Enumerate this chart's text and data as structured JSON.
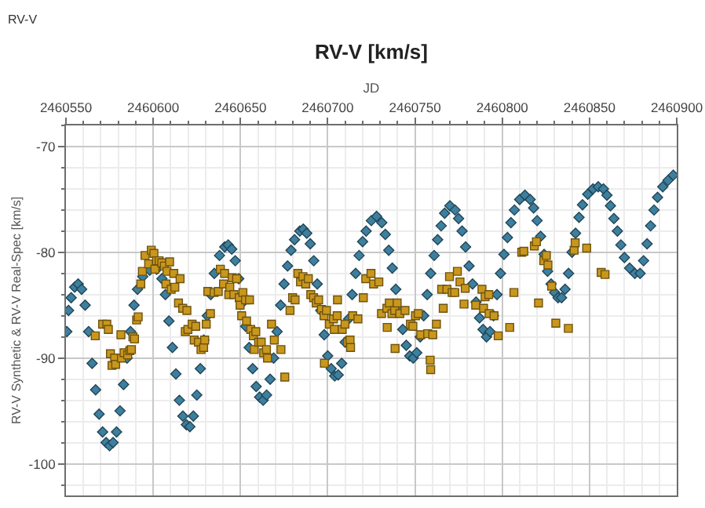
{
  "chart_data": {
    "type": "scatter",
    "title": "RV-V [km/s]",
    "xlabel": "JD",
    "ylabel": "RV-V Synthetic & RV-V Real-Spec [km/s]",
    "annotations": [
      "RV-V"
    ],
    "xlim": [
      2460550,
      2460900
    ],
    "ylim": [
      -103,
      -68
    ],
    "xticks": [
      2460550,
      {
        "value": 2460560,
        "label": null
      },
      {
        "value": 2460570,
        "label": null
      },
      {
        "value": 2460580,
        "label": null
      },
      {
        "value": 2460590,
        "label": null
      },
      2460600,
      {
        "value": 2460610,
        "label": null
      },
      {
        "value": 2460620,
        "label": null
      },
      {
        "value": 2460630,
        "label": null
      },
      {
        "value": 2460640,
        "label": null
      },
      2460650,
      {
        "value": 2460660,
        "label": null
      },
      {
        "value": 2460670,
        "label": null
      },
      {
        "value": 2460680,
        "label": null
      },
      {
        "value": 2460690,
        "label": null
      },
      2460700,
      {
        "value": 2460710,
        "label": null
      },
      {
        "value": 2460720,
        "label": null
      },
      {
        "value": 2460730,
        "label": null
      },
      {
        "value": 2460740,
        "label": null
      },
      2460750,
      {
        "value": 2460760,
        "label": null
      },
      {
        "value": 2460770,
        "label": null
      },
      {
        "value": 2460780,
        "label": null
      },
      {
        "value": 2460790,
        "label": null
      },
      2460800,
      {
        "value": 2460810,
        "label": null
      },
      {
        "value": 2460820,
        "label": null
      },
      {
        "value": 2460830,
        "label": null
      },
      {
        "value": 2460840,
        "label": null
      },
      2460850,
      {
        "value": 2460860,
        "label": null
      },
      {
        "value": 2460870,
        "label": null
      },
      {
        "value": 2460880,
        "label": null
      },
      {
        "value": 2460890,
        "label": null
      },
      2460900
    ],
    "yticks": [
      {
        "value": -102,
        "label": null
      },
      -100,
      {
        "value": -98,
        "label": null
      },
      {
        "value": -96,
        "label": null
      },
      {
        "value": -94,
        "label": null
      },
      {
        "value": -92,
        "label": null
      },
      -90,
      {
        "value": -88,
        "label": null
      },
      {
        "value": -86,
        "label": null
      },
      {
        "value": -84,
        "label": null
      },
      {
        "value": -82,
        "label": null
      },
      -80,
      {
        "value": -78,
        "label": null
      },
      {
        "value": -76,
        "label": null
      },
      {
        "value": -74,
        "label": null
      },
      {
        "value": -72,
        "label": null
      },
      -70,
      {
        "value": -68,
        "label": null
      }
    ],
    "grid": true,
    "series": [
      {
        "color": "#3d7f9e",
        "marker": "diamond",
        "x": [
          2460550.5,
          2460551.5,
          2460553,
          2460555,
          2460557,
          2460559,
          2460561,
          2460563,
          2460565,
          2460567,
          2460569,
          2460571,
          2460573,
          2460575,
          2460577,
          2460579,
          2460581,
          2460583,
          2460585,
          2460587,
          2460589,
          2460591,
          2460594,
          2460598,
          2460602,
          2460605,
          2460607,
          2460609,
          2460611,
          2460613,
          2460615,
          2460617,
          2460619,
          2460621,
          2460623,
          2460625,
          2460627,
          2460629,
          2460631,
          2460633,
          2460635,
          2460638,
          2460641,
          2460643,
          2460645,
          2460647,
          2460649,
          2460651,
          2460653,
          2460655,
          2460657,
          2460659,
          2460661,
          2460663,
          2460665,
          2460667,
          2460669,
          2460671,
          2460673,
          2460675,
          2460677,
          2460679,
          2460681,
          2460684,
          2460686,
          2460688,
          2460690,
          2460692,
          2460694,
          2460696,
          2460698,
          2460700,
          2460702,
          2460704,
          2460706,
          2460708,
          2460710,
          2460712,
          2460714,
          2460716,
          2460718,
          2460720,
          2460722,
          2460725,
          2460728,
          2460731,
          2460733,
          2460735,
          2460737,
          2460739,
          2460741,
          2460743,
          2460745,
          2460747,
          2460749,
          2460751,
          2460753,
          2460755,
          2460757,
          2460759,
          2460761,
          2460763,
          2460765,
          2460767,
          2460770,
          2460773,
          2460775,
          2460777,
          2460779,
          2460781,
          2460783,
          2460785,
          2460787,
          2460789,
          2460791,
          2460793,
          2460795,
          2460797,
          2460799,
          2460801,
          2460803,
          2460805,
          2460807,
          2460810,
          2460813,
          2460816,
          2460818,
          2460820,
          2460822,
          2460824,
          2460826,
          2460828,
          2460830,
          2460832,
          2460834,
          2460836,
          2460838,
          2460840,
          2460842,
          2460844,
          2460846,
          2460849,
          2460852,
          2460855,
          2460858,
          2460860,
          2460862,
          2460864,
          2460866,
          2460868,
          2460870,
          2460873,
          2460876,
          2460879,
          2460881,
          2460883,
          2460885,
          2460887,
          2460889,
          2460892,
          2460895,
          2460898
        ],
        "values": [
          -87.5,
          -85.5,
          -84.3,
          -83.3,
          -83,
          -83.5,
          -85,
          -87.5,
          -90.5,
          -93,
          -95.3,
          -97,
          -98,
          -98.3,
          -98,
          -97,
          -95,
          -92.5,
          -90,
          -87.5,
          -85,
          -83.5,
          -82.3,
          -81.7,
          -81.6,
          -82.5,
          -84,
          -86.5,
          -89,
          -91.5,
          -94,
          -95.5,
          -96.3,
          -96.5,
          -95.5,
          -93.5,
          -91,
          -88.3,
          -86,
          -84,
          -82,
          -80.3,
          -79.5,
          -79.3,
          -79.7,
          -80.8,
          -82.5,
          -84.8,
          -87,
          -89,
          -91,
          -92.7,
          -93.7,
          -94,
          -93.5,
          -92,
          -90,
          -87.5,
          -85,
          -83,
          -81.3,
          -79.8,
          -78.8,
          -78,
          -77.8,
          -78.2,
          -79.2,
          -80.8,
          -83,
          -85.5,
          -87.8,
          -89.8,
          -91,
          -91.7,
          -91.6,
          -90.5,
          -88.5,
          -86.3,
          -84,
          -82,
          -80.3,
          -79,
          -78,
          -77,
          -76.6,
          -77.2,
          -78.3,
          -79.8,
          -81.5,
          -83.5,
          -85.5,
          -87.3,
          -88.8,
          -89.8,
          -90,
          -89.5,
          -88,
          -86,
          -84,
          -82,
          -80.3,
          -78.8,
          -77.5,
          -76.3,
          -75.6,
          -76,
          -76.8,
          -78,
          -79.5,
          -81.3,
          -83,
          -84.7,
          -86.2,
          -87.3,
          -88,
          -87.5,
          -86,
          -84,
          -82,
          -80.2,
          -78.6,
          -77.2,
          -76,
          -75,
          -74.6,
          -75,
          -75.8,
          -77,
          -78.5,
          -80.2,
          -81.8,
          -83,
          -83.8,
          -84.3,
          -84.3,
          -83.5,
          -82,
          -80,
          -78.2,
          -76.7,
          -75.5,
          -74.5,
          -74,
          -73.8,
          -74,
          -74.6,
          -75.6,
          -76.8,
          -78,
          -79.3,
          -80.5,
          -81.5,
          -82,
          -82,
          -80.8,
          -79.2,
          -77.5,
          -76,
          -74.8,
          -73.8,
          -73.2,
          -72.7
        ]
      },
      {
        "color": "#c9971c",
        "marker": "square",
        "x": [
          2460566.8,
          2460571.0,
          2460573.4,
          2460574.3,
          2460575.5,
          2460576.4,
          2460577.9,
          2460578.5,
          2460581.5,
          2460581.8,
          2460583.3,
          2460585.4,
          2460586.6,
          2460587.5,
          2460588.4,
          2460589.3,
          2460590.5,
          2460591.4,
          2460592.9,
          2460593.8,
          2460595.3,
          2460597.4,
          2460598.9,
          2460600.4,
          2460601.0,
          2460601.9,
          2460603.4,
          2460604.9,
          2460606.4,
          2460607.3,
          2460607.9,
          2460609.4,
          2460610.3,
          2460611.8,
          2460612.4,
          2460614.5,
          2460615.4,
          2460616.9,
          2460618.4,
          2460619.3,
          2460619.9,
          2460622.3,
          2460623.5,
          2460624.4,
          2460625.9,
          2460627.4,
          2460628.9,
          2460629.5,
          2460630.4,
          2460631.3,
          2460632.8,
          2460634.9,
          2460637.3,
          2460638.5,
          2460640.3,
          2460640.9,
          2460643.3,
          2460643.9,
          2460645.3,
          2460646.2,
          2460647.8,
          2460649.3,
          2460649.8,
          2460650.7,
          2460651.4,
          2460652.9,
          2460653.5,
          2460655.2,
          2460655.9,
          2460657.4,
          2460657.9,
          2460658.8,
          2460660.4,
          2460661.9,
          2460663.3,
          2460664.9,
          2460665.5,
          2460667.8,
          2460669.4,
          2460673.2,
          2460675.4,
          2460678.4,
          2460679.9,
          2460681.3,
          2460682.9,
          2460684.4,
          2460685.8,
          2460687.4,
          2460688.9,
          2460690.3,
          2460691.9,
          2460693.4,
          2460694.8,
          2460696.4,
          2460697.9,
          2460698.1,
          2460699.3,
          2460700.9,
          2460703.3,
          2460703.8,
          2460705.4,
          2460705.6,
          2460708.3,
          2460709.9,
          2460711.4,
          2460712.8,
          2460713.1,
          2460714.3,
          2460717.3,
          2460720.4,
          2460721.8,
          2460724.8,
          2460726.3,
          2460729.3,
          2460730.8,
          2460733.9,
          2460734.1,
          2460735.3,
          2460736.8,
          2460738.4,
          2460738.6,
          2460739.8,
          2460741.3,
          2460744.3,
          2460747.4,
          2460748.8,
          2460750.3,
          2460751.9,
          2460753.3,
          2460757.3,
          2460758.7,
          2460759.0,
          2460760.2,
          2460762.3,
          2460765.3,
          2460766.2,
          2460768.3,
          2460769.8,
          2460771.3,
          2460772.8,
          2460774.3,
          2460775.8,
          2460778.1,
          2460778.8,
          2460784.8,
          2460788.4,
          2460789.3,
          2460790.2,
          2460792.3,
          2460792.5,
          2460795.3,
          2460797.7,
          2460804.3,
          2460806.7,
          2460811.2,
          2460812.4,
          2460818.4,
          2460819.6,
          2460820.8,
          2460823.8,
          2460825.3,
          2460826.2,
          2460828.3,
          2460830.7,
          2460837.9,
          2460841.2,
          2460841.8,
          2460848.4,
          2460856.7,
          2460858.9
        ],
        "values": [
          -87.9,
          -86.8,
          -86.8,
          -87.3,
          -89.6,
          -90.7,
          -90.0,
          -90.6,
          -87.8,
          -90.0,
          -89.5,
          -89.7,
          -89.3,
          -89.2,
          -88.0,
          -88.2,
          -86.4,
          -86.1,
          -83.0,
          -81.8,
          -80.3,
          -81.1,
          -79.8,
          -80.1,
          -81.6,
          -80.8,
          -80.8,
          -81.0,
          -81.3,
          -83.0,
          -81.8,
          -80.9,
          -83.5,
          -82.0,
          -83.3,
          -84.8,
          -82.5,
          -85.3,
          -87.5,
          -85.5,
          -87.3,
          -86.8,
          -88.3,
          -87.0,
          -88.5,
          -89.2,
          -89.0,
          -88.3,
          -86.8,
          -83.7,
          -85.8,
          -83.8,
          -83.7,
          -81.6,
          -83.0,
          -82.0,
          -84.0,
          -83.3,
          -82.4,
          -84.0,
          -82.5,
          -84.3,
          -85.0,
          -86.0,
          -83.8,
          -84.5,
          -86.5,
          -84.5,
          -87.3,
          -87.9,
          -89.2,
          -87.5,
          -88.5,
          -88.5,
          -89.5,
          -89.2,
          -90.0,
          -86.8,
          -88.3,
          -89.2,
          -91.8,
          -85.5,
          -84.3,
          -84.5,
          -82.0,
          -82.8,
          -82.3,
          -83.0,
          -82.5,
          -84.0,
          -84.3,
          -84.8,
          -84.5,
          -85.4,
          -86.0,
          -90.5,
          -85.5,
          -86.8,
          -86.3,
          -87.3,
          -86.0,
          -84.5,
          -87.3,
          -86.8,
          -88.5,
          -88.3,
          -89.0,
          -86.0,
          -86.3,
          -84.3,
          -82.5,
          -82.0,
          -83.0,
          -82.8,
          -85.8,
          -85.3,
          -87.1,
          -84.8,
          -85.8,
          -85.5,
          -89.1,
          -84.8,
          -85.8,
          -85.5,
          -86.8,
          -87.0,
          -86.0,
          -85.8,
          -87.8,
          -87.7,
          -90.2,
          -91.1,
          -87.8,
          -86.8,
          -83.5,
          -85.3,
          -83.5,
          -82.3,
          -83.8,
          -83.8,
          -81.8,
          -82.8,
          -84.9,
          -83.4,
          -85.0,
          -83.5,
          -85.3,
          -84.2,
          -84.0,
          -85.8,
          -86.0,
          -87.9,
          -87.1,
          -83.8,
          -80.0,
          -79.9,
          -79.4,
          -79.0,
          -84.8,
          -80.8,
          -80.3,
          -81.2,
          -83.2,
          -86.7,
          -87.2,
          -79.8,
          -79.1,
          -79.6,
          -81.9,
          -82.1
        ]
      }
    ]
  }
}
